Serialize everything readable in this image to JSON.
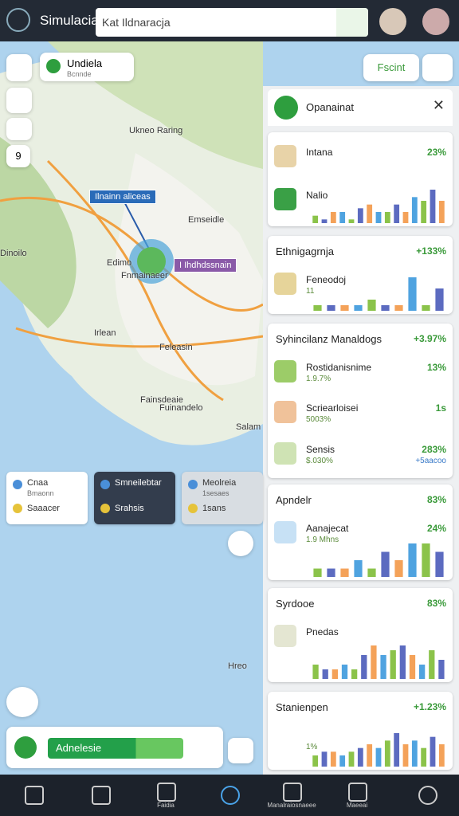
{
  "header": {
    "app_name": "Simulacia",
    "search": "Kat Ildnaracja"
  },
  "map": {
    "location": "Undiela",
    "location_sub": "Bcnnde",
    "search_button": "Fscint",
    "zoom_badge": "9",
    "labels": [
      "Ukneo Raring",
      "Emseidle",
      "Edimo",
      "Fnmainaeer",
      "Dinoilo",
      "Irlean",
      "Feleasin",
      "Fainsdeaie",
      "Fuinandelo",
      "Salam",
      "Hreo"
    ],
    "callouts": [
      "Ilnainn aliceas",
      "I Ihdhdssnain"
    ]
  },
  "info_cards": [
    {
      "rows": [
        {
          "title": "Cnaa",
          "sub": "Bmaonn"
        },
        {
          "title": "Saaacer"
        }
      ]
    },
    {
      "rows": [
        {
          "title": "Smneilebtar"
        },
        {
          "title": "Srahsis"
        }
      ]
    },
    {
      "rows": [
        {
          "title": "Meolreia",
          "sub": "1sesaes"
        },
        {
          "title": "1sans"
        }
      ]
    }
  ],
  "action_bar": {
    "label": "Adnelesie"
  },
  "panel": {
    "title": "Opanainat",
    "bar_colors": [
      "#8bc34a",
      "#5c6bc0",
      "#f4a259",
      "#4fa3e0"
    ],
    "cards": [
      {
        "rows": [
          {
            "label": "Intana",
            "value": "23%"
          },
          {
            "label": "Nalio",
            "bars": [
              2,
              1,
              3,
              3,
              1,
              4,
              5,
              3,
              3,
              5,
              3,
              7,
              6,
              9,
              6
            ]
          }
        ]
      },
      {
        "title": "Ethnigagrnja",
        "change": "+133%",
        "rows": [
          {
            "label": "Feneodoj",
            "sub": "11",
            "bars": [
              1,
              1,
              1,
              1,
              2,
              1,
              1,
              6,
              1,
              4
            ]
          }
        ]
      },
      {
        "title": "Syhincilanz Manaldogs",
        "change": "+3.97%",
        "rows": [
          {
            "label": "Rostidanisnime",
            "value": "13%",
            "sub": "1.9.7%"
          },
          {
            "label": "Scriearloisei",
            "value": "1s",
            "sub": "5003%"
          },
          {
            "label": "Sensis",
            "value": "283%",
            "sub": "$.030%",
            "sub2": "+5aacoo"
          }
        ]
      },
      {
        "title": "Apndelr",
        "change": "83%",
        "rows": [
          {
            "label": "Aanajecat",
            "value": "24%",
            "sub": "1.9 Mhns",
            "bars": [
              1,
              1,
              1,
              2,
              1,
              3,
              2,
              4,
              4,
              3
            ]
          }
        ]
      },
      {
        "title": "Syrdooe",
        "change": "83%",
        "rows": [
          {
            "label": "Pnedas",
            "bars": [
              3,
              2,
              2,
              3,
              2,
              5,
              7,
              5,
              6,
              7,
              5,
              3,
              6,
              4
            ]
          }
        ]
      },
      {
        "title": "Stanienpen",
        "change": "+1.23%",
        "rows": [
          {
            "sub": "1%",
            "bars": [
              3,
              4,
              4,
              3,
              4,
              5,
              6,
              5,
              7,
              9,
              6,
              7,
              5,
              8,
              6
            ]
          }
        ]
      }
    ]
  },
  "nav": {
    "items": [
      "Faidia",
      "Manalraiosnaeee",
      "Maeeai"
    ]
  }
}
